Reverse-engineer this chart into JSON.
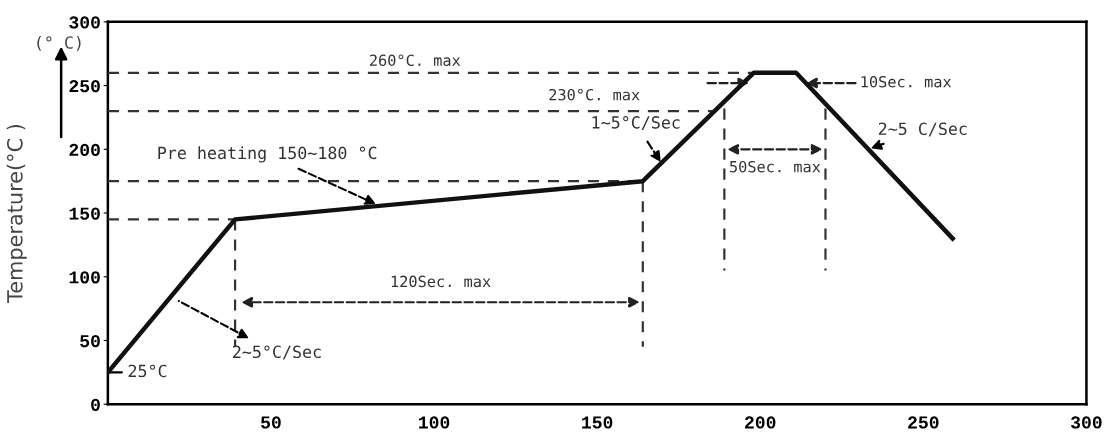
{
  "chart_data": {
    "type": "line",
    "ylabel": "Temperature(°C )",
    "x": [
      0,
      39,
      164,
      198,
      211,
      259
    ],
    "series": [
      {
        "color": "#111111",
        "values": [
          25,
          145,
          175,
          260,
          260,
          130
        ]
      }
    ],
    "xlim": [
      0,
      300
    ],
    "ylim": [
      0,
      300
    ],
    "xticks": [
      50,
      100,
      150,
      200,
      250,
      300
    ],
    "yticks": [
      0,
      50,
      100,
      150,
      200,
      250,
      300
    ],
    "grid": false,
    "legend": false,
    "marker": "none",
    "line_style": "solid",
    "ref_lines": [
      {
        "axis": "y",
        "value": 260,
        "label": "260°C. max",
        "color": "#333333",
        "line_style": "dashed"
      },
      {
        "axis": "y",
        "value": 230,
        "label": "230°C. max",
        "color": "#333333",
        "line_style": "dashed"
      },
      {
        "axis": "y",
        "value": 175,
        "color": "#333333",
        "line_style": "dashed"
      },
      {
        "axis": "y",
        "value": 145,
        "color": "#333333",
        "line_style": "dashed"
      },
      {
        "axis": "x",
        "value": 39,
        "color": "#333333",
        "line_style": "dashed"
      },
      {
        "axis": "x",
        "value": 164,
        "color": "#333333",
        "line_style": "dashed"
      },
      {
        "axis": "x",
        "value": 189,
        "color": "#333333",
        "line_style": "dashed"
      },
      {
        "axis": "x",
        "value": 220,
        "color": "#333333",
        "line_style": "dashed"
      }
    ],
    "annotations": [
      {
        "text": "25°C",
        "x": 0,
        "y": 25
      },
      {
        "text": "2~5°C/Sec",
        "x": 21,
        "y": 82
      },
      {
        "text": "Pre heating 150~180 °C",
        "x": 83,
        "y": 156
      },
      {
        "text": "1~5°C/Sec",
        "x": 170,
        "y": 188
      },
      {
        "text": "2~5 C/Sec",
        "x": 233,
        "y": 200
      },
      "(° C)",
      "120Sec. max",
      "50Sec. max",
      {
        "text": "10Sec. max",
        "x": 214,
        "y": 252
      }
    ]
  }
}
